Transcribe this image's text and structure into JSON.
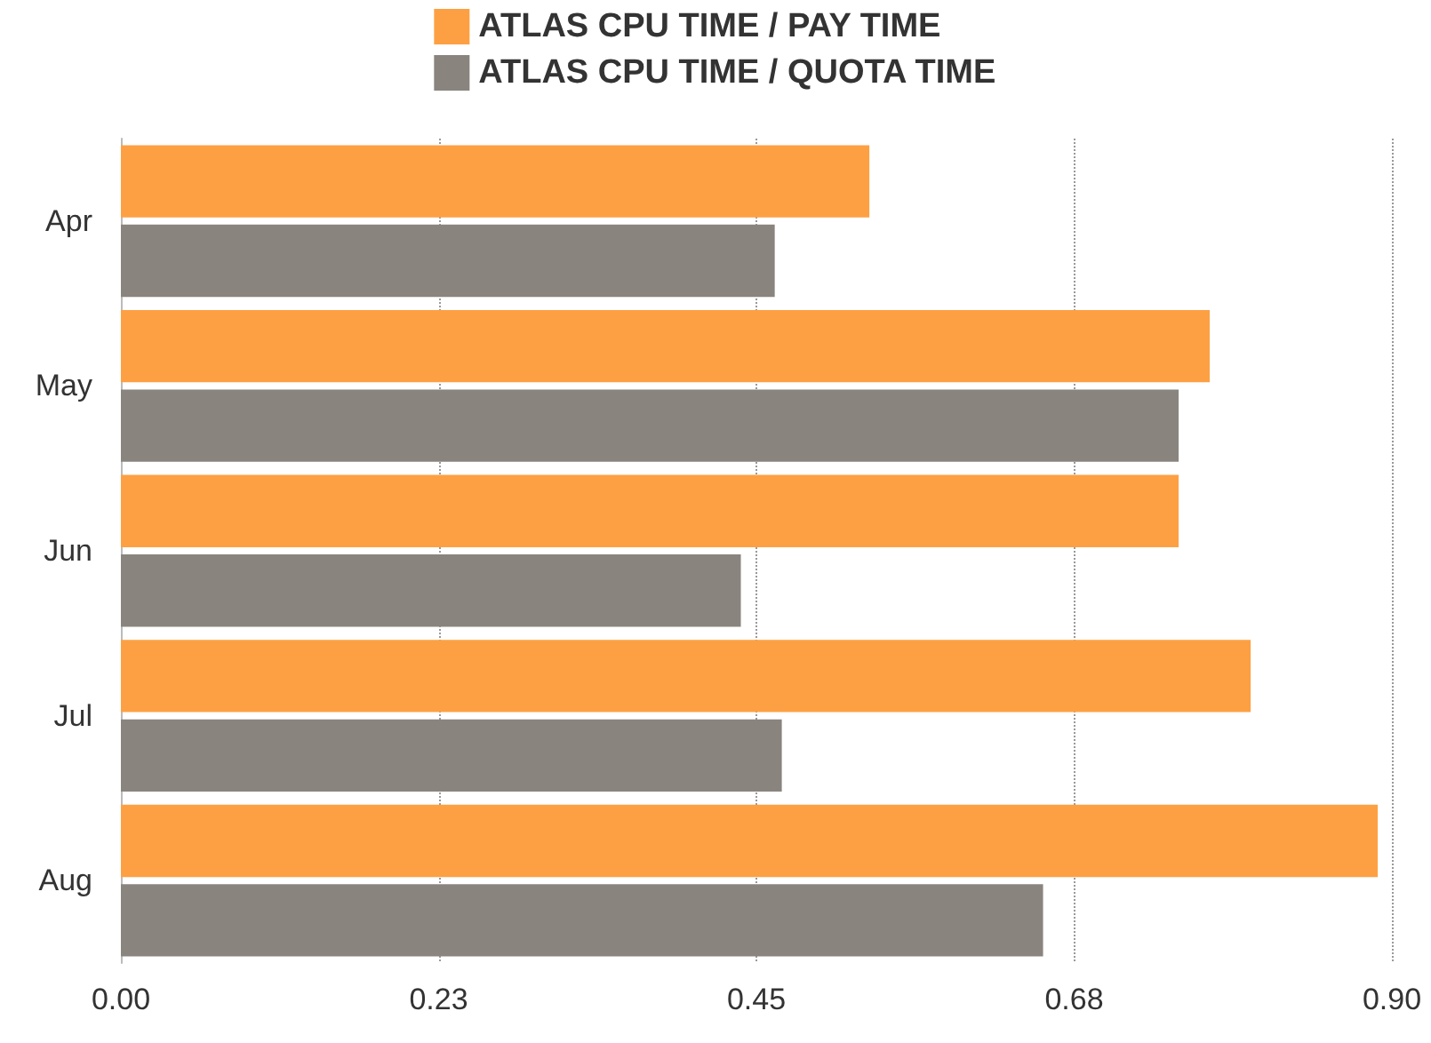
{
  "chart_data": {
    "type": "bar",
    "orientation": "horizontal",
    "categories": [
      "Apr",
      "May",
      "Jun",
      "Jul",
      "Aug"
    ],
    "series": [
      {
        "name": "ATLAS CPU TIME / PAY TIME",
        "color": "#fda043",
        "values": [
          0.53,
          0.771,
          0.749,
          0.8,
          0.89
        ]
      },
      {
        "name": "ATLAS CPU TIME / QUOTA TIME",
        "color": "#8a847e",
        "values": [
          0.463,
          0.749,
          0.439,
          0.468,
          0.653
        ]
      }
    ],
    "xlim": [
      0,
      0.9
    ],
    "xticks": [
      {
        "value": 0,
        "label": "0.00"
      },
      {
        "value": 0.225,
        "label": "0.23"
      },
      {
        "value": 0.45,
        "label": "0.45"
      },
      {
        "value": 0.675,
        "label": "0.68"
      },
      {
        "value": 0.9,
        "label": "0.90"
      }
    ],
    "grid": "x",
    "legend": "top"
  }
}
